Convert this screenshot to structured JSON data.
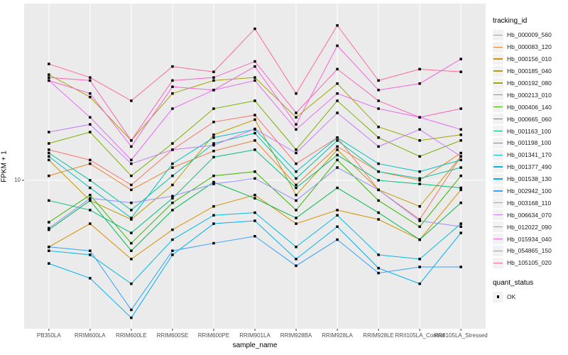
{
  "chart_data": {
    "type": "line",
    "title": "",
    "xlabel": "sample_name",
    "ylabel": "FPKM + 1",
    "y_scale": "log10",
    "y_tick_label": "10",
    "y_tick_value": 10,
    "ylim": [
      1.95,
      70
    ],
    "grid": "vertical-major-per-category-plus-y10",
    "panel_bg": "#EBEBEB",
    "grid_color": "#FFFFFF",
    "point_shape": "square",
    "point_color": "#000000",
    "categories": [
      "PB350LA",
      "RRIM600LA",
      "RRIM600LE",
      "RRIM600SE",
      "RRIM600PE",
      "RRIM901LA",
      "RRIM928BA",
      "RRIM928LA",
      "RRIM928LE",
      "RRII105LA_Control",
      "RRII105LA_Stressed"
    ],
    "series": [
      {
        "name": "Hb_000009_560",
        "color": "#F8766D",
        "values": [
          14,
          12.5,
          9.5,
          14,
          19,
          20.5,
          12,
          16,
          9,
          6.5,
          13
        ]
      },
      {
        "name": "Hb_000083_120",
        "color": "#EA8331",
        "values": [
          10.5,
          12,
          9,
          11.5,
          13.8,
          15.5,
          9.5,
          14.5,
          11,
          10,
          13.5
        ]
      },
      {
        "name": "Hb_000156_010",
        "color": "#D89000",
        "values": [
          4.8,
          6.2,
          4.2,
          5.8,
          7.5,
          8.5,
          6.2,
          7.2,
          6.5,
          5.2,
          9
        ]
      },
      {
        "name": "Hb_000185_040",
        "color": "#C09B00",
        "values": [
          12.5,
          8,
          6.5,
          9.5,
          16.5,
          19.5,
          8.5,
          14,
          9,
          7.5,
          13
        ]
      },
      {
        "name": "Hb_000192_080",
        "color": "#A3A500",
        "values": [
          32,
          25,
          15.5,
          26,
          30,
          31,
          20,
          29,
          18,
          15.5,
          16.5
        ]
      },
      {
        "name": "Hb_000213_010",
        "color": "#7CAE00",
        "values": [
          15,
          17,
          10.5,
          15,
          22,
          24,
          14,
          24,
          16,
          13,
          15.5
        ]
      },
      {
        "name": "Hb_000406_140",
        "color": "#39B600",
        "values": [
          6.3,
          8.5,
          5,
          7.8,
          10.5,
          11,
          7.2,
          12.5,
          8,
          6,
          10.5
        ]
      },
      {
        "name": "Hb_000665_060",
        "color": "#00BB4E",
        "values": [
          5.8,
          8,
          4.6,
          7.2,
          9.8,
          8.2,
          6.6,
          9.2,
          7,
          5.2,
          7.8
        ]
      },
      {
        "name": "Hb_001163_100",
        "color": "#00BF7D",
        "values": [
          8,
          7.2,
          5.6,
          8.2,
          12.9,
          14,
          9.2,
          13.2,
          10,
          9.6,
          9.2
        ]
      },
      {
        "name": "Hb_001198_100",
        "color": "#00C1A3",
        "values": [
          13.5,
          10,
          7.2,
          10.5,
          15,
          16.8,
          10.2,
          15.5,
          11,
          10.2,
          11.5
        ]
      },
      {
        "name": "Hb_001341_170",
        "color": "#00BFC4",
        "values": [
          13,
          9.2,
          6.6,
          12,
          16,
          17.5,
          11,
          16,
          12,
          11,
          12.5
        ]
      },
      {
        "name": "Hb_001377_490",
        "color": "#00BAE0",
        "values": [
          4.6,
          4.4,
          3.2,
          5.2,
          6.8,
          7,
          4.8,
          6.8,
          4.4,
          4.2,
          6.2
        ]
      },
      {
        "name": "Hb_001538_130",
        "color": "#00B0F6",
        "values": [
          4.0,
          3.4,
          2.2,
          4.4,
          6.2,
          6.4,
          4.2,
          6.0,
          3.8,
          3.2,
          5.6
        ]
      },
      {
        "name": "Hb_002942_100",
        "color": "#35A2FF",
        "values": [
          4.8,
          4.6,
          2.4,
          4.6,
          5.0,
          5.4,
          3.9,
          5.2,
          3.6,
          3.85,
          3.85
        ]
      },
      {
        "name": "Hb_003168_110",
        "color": "#9590FF",
        "values": [
          5.9,
          8.2,
          7.8,
          8.4,
          9.6,
          10.2,
          8.0,
          11.5,
          9.0,
          6.4,
          6.0
        ]
      },
      {
        "name": "Hb_006634_070",
        "color": "#C77CFF",
        "values": [
          17,
          18.5,
          12,
          14,
          14.7,
          17.6,
          13.5,
          21,
          14.5,
          17.5,
          13
        ]
      },
      {
        "name": "Hb_012022_090",
        "color": "#E76BF3",
        "values": [
          30,
          20,
          12.5,
          22,
          27,
          30,
          17.5,
          26,
          22,
          20,
          17.5
        ]
      },
      {
        "name": "Hb_015934_040",
        "color": "#FA62DB",
        "values": [
          30,
          26,
          14.5,
          28,
          27,
          35,
          18.5,
          44,
          27,
          29,
          38
        ]
      },
      {
        "name": "Hb_054865_150",
        "color": "#FF62BC",
        "values": [
          31,
          30,
          15.5,
          30,
          31,
          37,
          21,
          34,
          24,
          20,
          22
        ]
      },
      {
        "name": "Hb_105105_020",
        "color": "#FF6A98",
        "values": [
          36,
          31,
          24,
          35,
          33,
          53,
          26,
          55,
          30,
          34,
          33
        ]
      }
    ],
    "legend": {
      "color_title": "tracking_id",
      "shape_title": "quant_status",
      "shape_entries": [
        {
          "label": "OK",
          "shape": "square",
          "color": "#000000"
        }
      ],
      "position": "right"
    }
  }
}
